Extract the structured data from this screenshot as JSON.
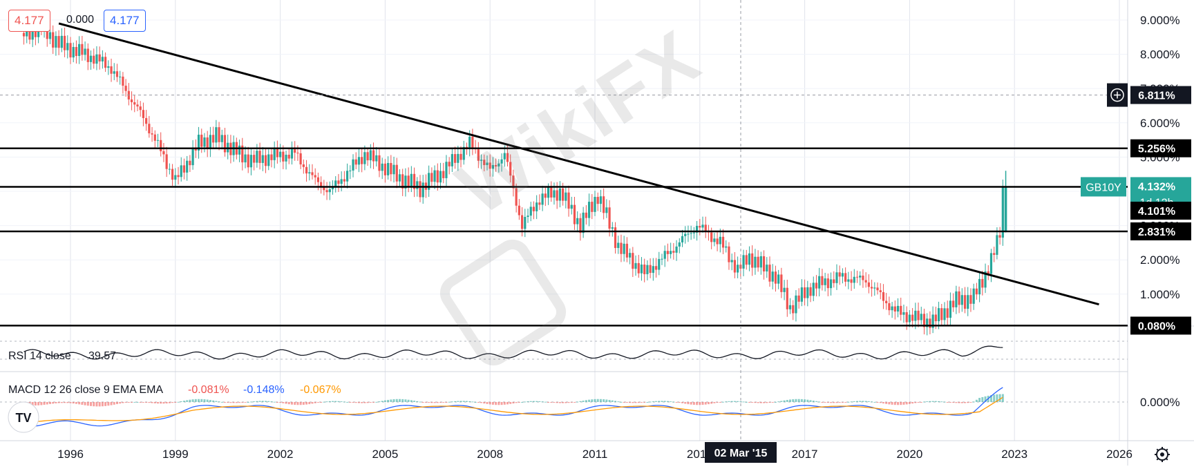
{
  "ohlc_readout": {
    "open": "4.177",
    "change": "0.000",
    "close": "4.177"
  },
  "symbol": "GB10Y",
  "countdown": "1d 12h",
  "crosshair": {
    "price_label": "6.811%",
    "date_label": "02 Mar '15"
  },
  "colors": {
    "up": "#26a69a",
    "down": "#ef5350",
    "rsi_line": "#131722",
    "macd_line": "#2962ff",
    "signal_line": "#ff9800",
    "level_line": "#000000",
    "trendline": "#000000",
    "symbol_tag": "#26a69a"
  },
  "watermark": "WikiFX",
  "chart_data": [
    {
      "type": "candlestick",
      "title": "",
      "x_ticks": [
        "1996",
        "1999",
        "2002",
        "2005",
        "2008",
        "2011",
        "2014",
        "2017",
        "2020",
        "2023",
        "2026"
      ],
      "y_ticks": [
        "9.000%",
        "8.000%",
        "7.000%",
        "6.000%",
        "5.000%",
        "4.000%",
        "3.000%",
        "2.000%",
        "1.000%",
        "0.000%"
      ],
      "y_scale": "linear",
      "ylim": [
        -0.1,
        9.5
      ],
      "interval": "monthly",
      "approx_monthly_close": [
        {
          "x": "1994-09",
          "y": 8.6
        },
        {
          "x": "1995-03",
          "y": 8.8
        },
        {
          "x": "1995-09",
          "y": 8.3
        },
        {
          "x": "1996-03",
          "y": 8.1
        },
        {
          "x": "1996-09",
          "y": 7.9
        },
        {
          "x": "1997-03",
          "y": 7.6
        },
        {
          "x": "1997-09",
          "y": 6.8
        },
        {
          "x": "1998-03",
          "y": 6.0
        },
        {
          "x": "1998-09",
          "y": 5.0
        },
        {
          "x": "1999-01",
          "y": 4.3
        },
        {
          "x": "1999-09",
          "y": 5.4
        },
        {
          "x": "2000-03",
          "y": 5.6
        },
        {
          "x": "2000-09",
          "y": 5.2
        },
        {
          "x": "2001-03",
          "y": 4.9
        },
        {
          "x": "2001-09",
          "y": 5.0
        },
        {
          "x": "2002-06",
          "y": 5.1
        },
        {
          "x": "2003-01",
          "y": 4.3
        },
        {
          "x": "2003-06",
          "y": 4.0
        },
        {
          "x": "2004-06",
          "y": 5.1
        },
        {
          "x": "2005-06",
          "y": 4.4
        },
        {
          "x": "2006-01",
          "y": 4.1
        },
        {
          "x": "2006-09",
          "y": 4.6
        },
        {
          "x": "2007-06",
          "y": 5.4
        },
        {
          "x": "2008-01",
          "y": 4.6
        },
        {
          "x": "2008-06",
          "y": 5.1
        },
        {
          "x": "2008-12",
          "y": 3.0
        },
        {
          "x": "2009-06",
          "y": 3.8
        },
        {
          "x": "2010-01",
          "y": 4.0
        },
        {
          "x": "2010-08",
          "y": 3.0
        },
        {
          "x": "2011-02",
          "y": 3.9
        },
        {
          "x": "2011-09",
          "y": 2.4
        },
        {
          "x": "2012-06",
          "y": 1.6
        },
        {
          "x": "2013-01",
          "y": 2.1
        },
        {
          "x": "2013-12",
          "y": 3.0
        },
        {
          "x": "2014-08",
          "y": 2.5
        },
        {
          "x": "2015-02",
          "y": 1.7
        },
        {
          "x": "2015-06",
          "y": 2.1
        },
        {
          "x": "2016-03",
          "y": 1.5
        },
        {
          "x": "2016-08",
          "y": 0.6
        },
        {
          "x": "2017-03",
          "y": 1.2
        },
        {
          "x": "2018-01",
          "y": 1.5
        },
        {
          "x": "2018-10",
          "y": 1.4
        },
        {
          "x": "2019-08",
          "y": 0.5
        },
        {
          "x": "2020-03",
          "y": 0.3
        },
        {
          "x": "2020-09",
          "y": 0.2
        },
        {
          "x": "2021-05",
          "y": 0.8
        },
        {
          "x": "2021-11",
          "y": 0.9
        },
        {
          "x": "2022-03",
          "y": 1.6
        },
        {
          "x": "2022-06",
          "y": 2.2
        },
        {
          "x": "2022-08",
          "y": 2.8
        },
        {
          "x": "2022-09",
          "y": 4.1
        }
      ],
      "price_labels": [
        "6.811%",
        "5.256%",
        "4.132%",
        "4.101%",
        "2.831%",
        "0.080%"
      ],
      "horizontal_levels": [
        5.256,
        4.132,
        2.831,
        0.08
      ],
      "trendline": {
        "start": {
          "x": "1995-09",
          "y": 8.9
        },
        "end": {
          "x": "2025-06",
          "y": 0.7
        }
      }
    },
    {
      "type": "line",
      "label": "RSI 14 close",
      "value": "39.57",
      "approx_trend": "mostly flat in mid-range, rising toward upper band at end"
    },
    {
      "type": "bar",
      "label": "MACD 12 26 close 9 EMA EMA",
      "values": [
        "-0.081%",
        "-0.148%",
        "-0.067%"
      ],
      "y_ticks": [
        "0.000%"
      ]
    }
  ]
}
